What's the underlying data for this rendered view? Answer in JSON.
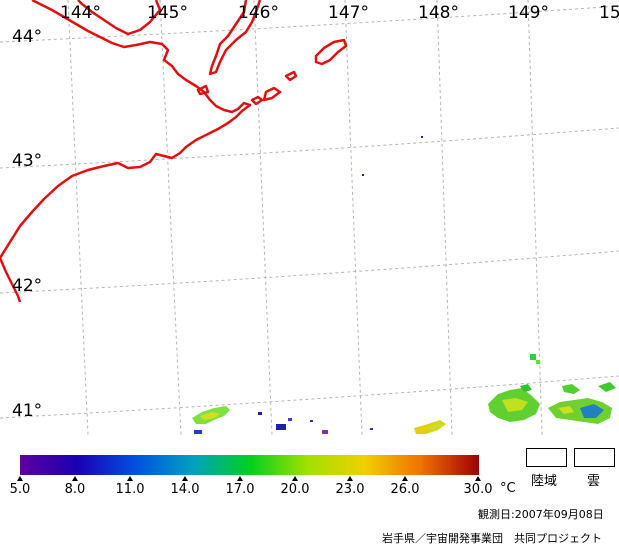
{
  "map": {
    "lon_labels": [
      "144°",
      "145°",
      "146°",
      "147°",
      "148°",
      "149°",
      "15"
    ],
    "lat_labels": [
      "44°",
      "43°",
      "42°",
      "41°"
    ]
  },
  "colorbar": {
    "ticks": [
      "5.0",
      "8.0",
      "11.0",
      "14.0",
      "17.0",
      "20.0",
      "23.0",
      "26.0",
      "30.0"
    ],
    "unit": "°C",
    "range": [
      5.0,
      30.0
    ],
    "colors": [
      "#5b00a0",
      "#1a00b4",
      "#0050e0",
      "#00a0c0",
      "#00d020",
      "#a0e000",
      "#f0d000",
      "#f07000",
      "#a00000"
    ]
  },
  "legend": {
    "land_label": "陸域",
    "cloud_label": "雲"
  },
  "footer": {
    "observation_date": "観測日:2007年09月08日",
    "credit": "岩手県／宇宙開発事業団　共同プロジェクト"
  }
}
